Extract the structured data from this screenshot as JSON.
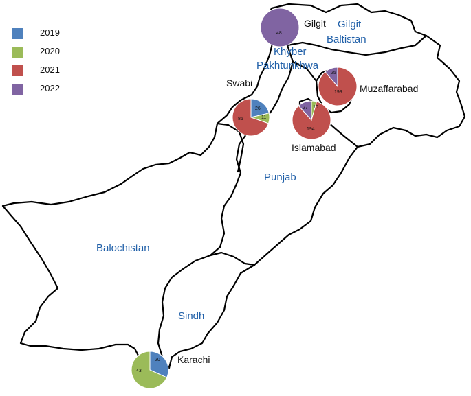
{
  "legend": [
    {
      "label": "2019",
      "color": "#4f81bd"
    },
    {
      "label": "2020",
      "color": "#9bbb59"
    },
    {
      "label": "2021",
      "color": "#c0504d"
    },
    {
      "label": "2022",
      "color": "#8064a2"
    }
  ],
  "regions": {
    "gilgit_baltistan_line1": "Gilgit",
    "gilgit_baltistan_line2": "Baltistan",
    "kp_line1": "Khyber",
    "kp_line2": "Pakhtunkhwa",
    "punjab": "Punjab",
    "balochistan": "Balochistan",
    "sindh": "Sindh"
  },
  "cities": [
    {
      "name": "Gilgit",
      "values": [
        0,
        0,
        0,
        48
      ]
    },
    {
      "name": "Swabi",
      "values": [
        26,
        11,
        85,
        0
      ]
    },
    {
      "name": "Muzaffarabad",
      "values": [
        0,
        0,
        199,
        25
      ]
    },
    {
      "name": "Islamabad",
      "values": [
        0,
        10,
        194,
        27
      ]
    },
    {
      "name": "Karachi",
      "values": [
        20,
        43,
        0,
        0
      ]
    }
  ],
  "slice_labels": {
    "gilgit": [
      "48"
    ],
    "swabi": [
      "26",
      "11",
      "85"
    ],
    "muzaffarabad": [
      "25",
      "199"
    ],
    "islamabad": [
      "27",
      "10",
      "194"
    ],
    "karachi": [
      "20",
      "43"
    ]
  }
}
